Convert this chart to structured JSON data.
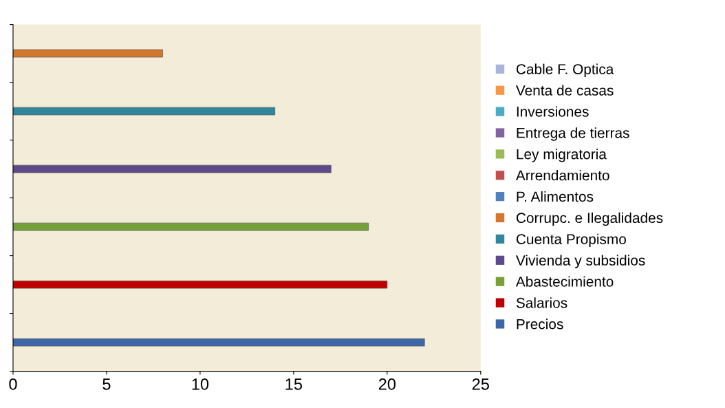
{
  "chart_data": {
    "type": "bar",
    "orientation": "horizontal",
    "categories": [
      null,
      null,
      null,
      null,
      null,
      null
    ],
    "series": [
      {
        "name": "Precios",
        "color": "#3d66a6",
        "values": [
          null,
          null,
          null,
          null,
          null,
          22
        ]
      },
      {
        "name": "Salarios",
        "color": "#c00000",
        "values": [
          null,
          null,
          null,
          null,
          20,
          null
        ]
      },
      {
        "name": "Abastecimiento",
        "color": "#76a03a",
        "values": [
          null,
          null,
          null,
          19,
          null,
          null
        ]
      },
      {
        "name": "Vivienda y subsidios",
        "color": "#5e4a8a",
        "values": [
          null,
          null,
          17,
          null,
          null,
          null
        ]
      },
      {
        "name": "Cuenta Propismo",
        "color": "#31869c",
        "values": [
          null,
          14,
          null,
          null,
          null,
          null
        ]
      },
      {
        "name": "Corrupc. e Ilegalidades",
        "color": "#d4762e",
        "values": [
          8,
          null,
          null,
          null,
          null,
          null
        ]
      },
      {
        "name": "P. Alimentos",
        "color": "#4f81bd",
        "values": [
          null,
          null,
          null,
          null,
          null,
          null
        ]
      },
      {
        "name": "Arrendamiento",
        "color": "#c0504d",
        "values": [
          null,
          null,
          null,
          null,
          null,
          null
        ]
      },
      {
        "name": "Ley migratoria",
        "color": "#9bbb59",
        "values": [
          null,
          null,
          null,
          null,
          null,
          null
        ]
      },
      {
        "name": "Entrega de tierras",
        "color": "#8064a2",
        "values": [
          null,
          null,
          null,
          null,
          null,
          null
        ]
      },
      {
        "name": "Inversiones",
        "color": "#4bacc6",
        "values": [
          null,
          null,
          null,
          null,
          null,
          null
        ]
      },
      {
        "name": "Venta de casas",
        "color": "#f79646",
        "values": [
          null,
          null,
          null,
          null,
          null,
          null
        ]
      },
      {
        "name": "Cable F. Optica",
        "color": "#a6b5d9",
        "values": [
          null,
          null,
          null,
          null,
          null,
          null
        ]
      }
    ],
    "xlim": [
      0,
      25
    ],
    "xticks": [
      0,
      5,
      10,
      15,
      20,
      25
    ],
    "tick_labels": "x",
    "grid": false,
    "legend": "right"
  }
}
